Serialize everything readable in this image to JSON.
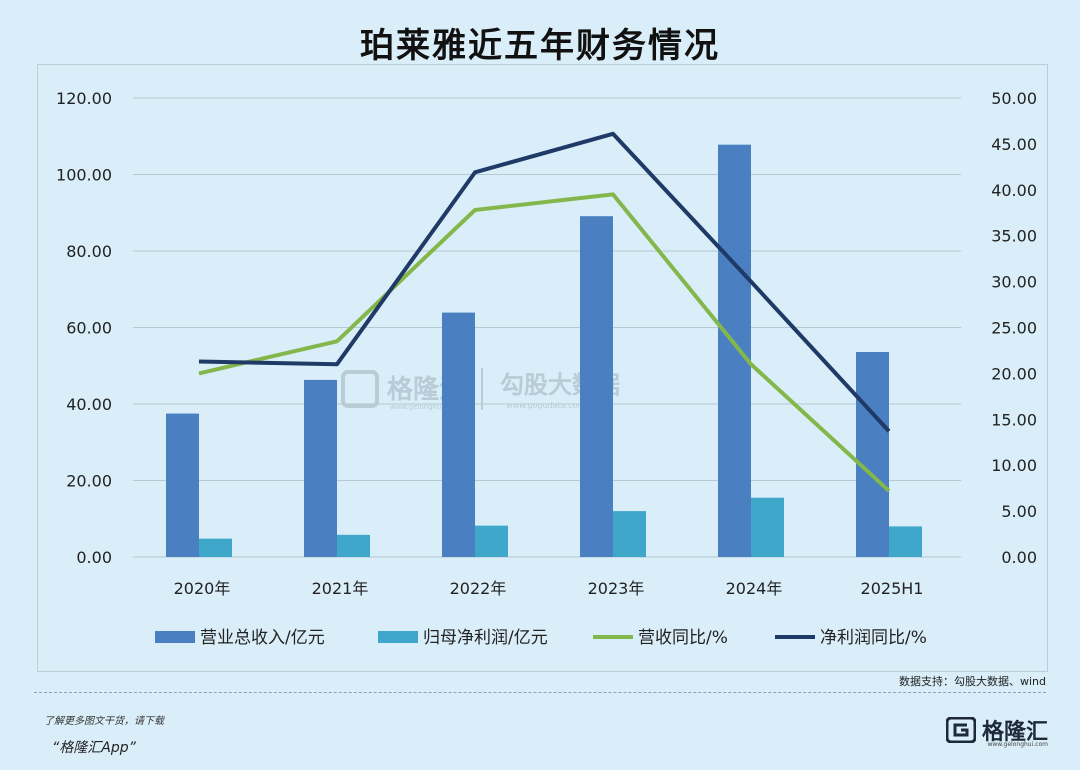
{
  "title": "珀莱雅近五年财务情况",
  "source_text": "数据支持：勾股大数据、wind",
  "footer": {
    "tip": "了解更多图文干货，请下载",
    "app": "“格隆汇App”"
  },
  "brand": {
    "name": "格隆汇",
    "url": "www.gelonghui.com"
  },
  "watermark": {
    "left": "格隆汇",
    "left_url": "www.gelonghui.com",
    "right": "勾股大数据",
    "right_url": "www.gogudata.com"
  },
  "colors": {
    "revenue": "#4a7fc1",
    "net_profit": "#3fa7c9",
    "revenue_yoy": "#84b74b",
    "net_profit_yoy": "#1f3a66",
    "grid": "#b8c8d0"
  },
  "chart_data": {
    "type": "bar",
    "title": "珀莱雅近五年财务情况",
    "categories": [
      "2020年",
      "2021年",
      "2022年",
      "2023年",
      "2024年",
      "2025H1"
    ],
    "ylim_left": [
      0,
      120
    ],
    "ylim_right": [
      0,
      50
    ],
    "yticks_left": [
      "0.00",
      "20.00",
      "40.00",
      "60.00",
      "80.00",
      "100.00",
      "120.00"
    ],
    "yticks_right": [
      "0.00",
      "5.00",
      "10.00",
      "15.00",
      "20.00",
      "25.00",
      "30.00",
      "35.00",
      "40.00",
      "45.00",
      "50.00"
    ],
    "grid": true,
    "legend_position": "bottom",
    "series": [
      {
        "name": "营业总收入/亿元",
        "type": "bar",
        "axis": "left",
        "values": [
          37.5,
          46.3,
          63.9,
          89.1,
          107.8,
          53.6
        ]
      },
      {
        "name": "归母净利润/亿元",
        "type": "bar",
        "axis": "left",
        "values": [
          4.8,
          5.8,
          8.2,
          12.0,
          15.5,
          8.0
        ]
      },
      {
        "name": "营收同比/%",
        "type": "line",
        "axis": "right",
        "values": [
          20.0,
          23.5,
          37.8,
          39.5,
          21.0,
          7.2
        ]
      },
      {
        "name": "净利润同比/%",
        "type": "line",
        "axis": "right",
        "values": [
          21.3,
          21.0,
          41.9,
          46.1,
          30.0,
          13.7
        ]
      }
    ]
  }
}
